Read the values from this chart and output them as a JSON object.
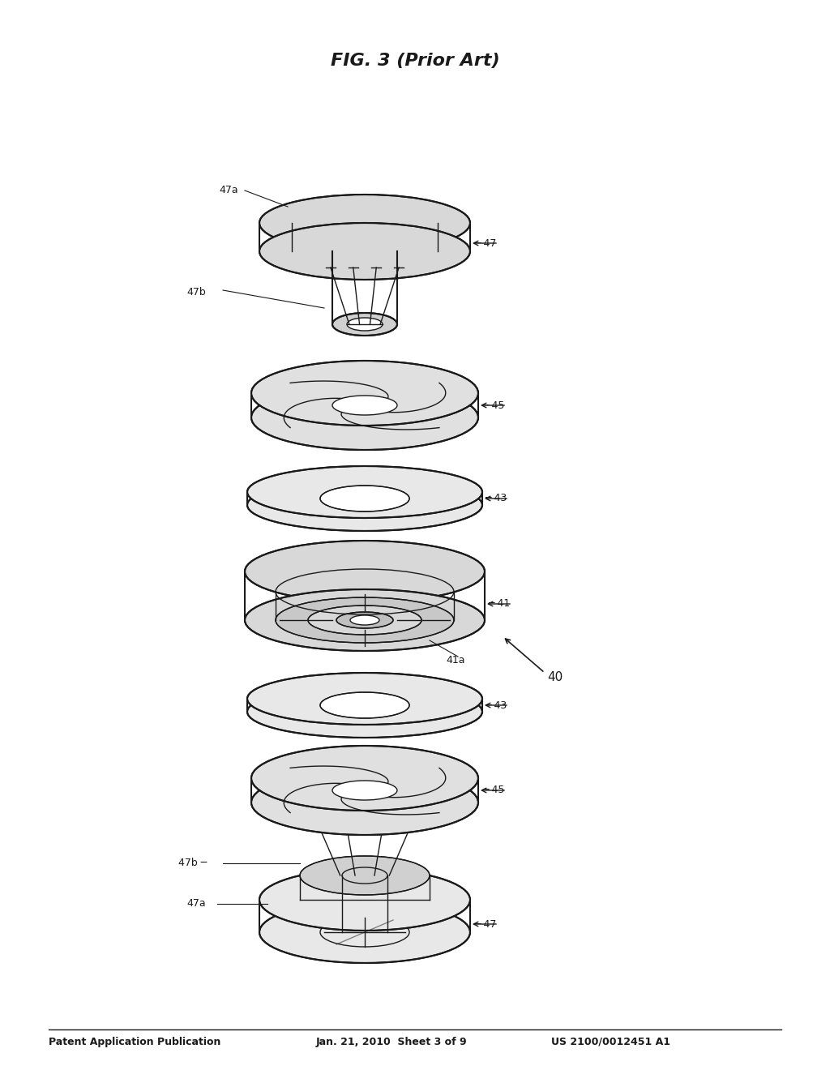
{
  "bg_color": "#ffffff",
  "line_color": "#1a1a1a",
  "header_left": "Patent Application Publication",
  "header_mid": "Jan. 21, 2010  Sheet 3 of 9",
  "header_right": "US 2100/0012451 A1",
  "footer_text": "FIG. 3 (Prior Art)",
  "fig_width": 10.24,
  "fig_height": 13.2,
  "dpi": 100
}
